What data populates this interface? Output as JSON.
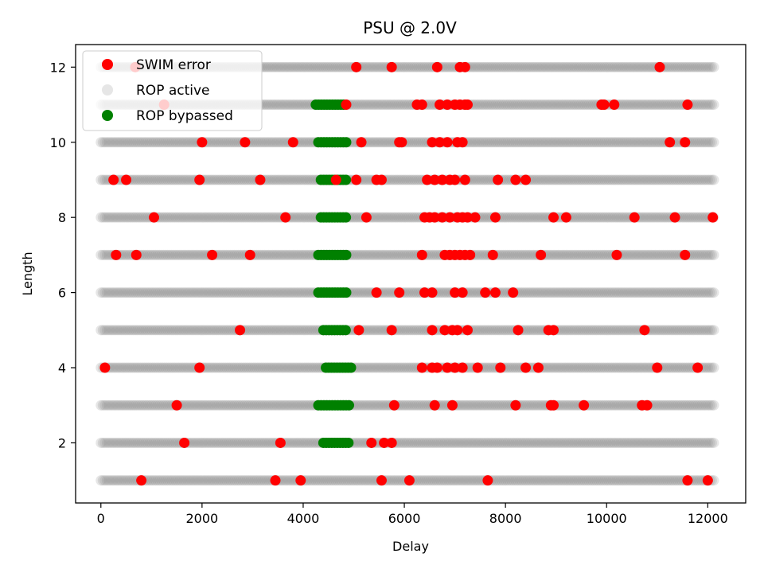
{
  "chart_data": {
    "type": "scatter",
    "title": "PSU @ 2.0V",
    "xlabel": "Delay",
    "ylabel": "Length",
    "xlim": [
      -500,
      12750
    ],
    "ylim": [
      0.4,
      12.6
    ],
    "xticks": [
      0,
      2000,
      4000,
      6000,
      8000,
      10000,
      12000
    ],
    "yticks": [
      2,
      4,
      6,
      8,
      10,
      12
    ],
    "grid": false,
    "legend_position": "top-left",
    "series": [
      {
        "name": "SWIM error",
        "color": "#ff0000",
        "points": [
          [
            680,
            12
          ],
          [
            5050,
            12
          ],
          [
            5750,
            12
          ],
          [
            6650,
            12
          ],
          [
            7100,
            12
          ],
          [
            7200,
            12
          ],
          [
            11050,
            12
          ],
          [
            1250,
            11
          ],
          [
            4850,
            11
          ],
          [
            6250,
            11
          ],
          [
            6350,
            11
          ],
          [
            6700,
            11
          ],
          [
            6850,
            11
          ],
          [
            7000,
            11
          ],
          [
            7100,
            11
          ],
          [
            7200,
            11
          ],
          [
            7250,
            11
          ],
          [
            9900,
            11
          ],
          [
            9950,
            11
          ],
          [
            10150,
            11
          ],
          [
            11600,
            11
          ],
          [
            2000,
            10
          ],
          [
            2850,
            10
          ],
          [
            3800,
            10
          ],
          [
            5150,
            10
          ],
          [
            5900,
            10
          ],
          [
            5950,
            10
          ],
          [
            6550,
            10
          ],
          [
            6700,
            10
          ],
          [
            6850,
            10
          ],
          [
            7050,
            10
          ],
          [
            7150,
            10
          ],
          [
            11250,
            10
          ],
          [
            11550,
            10
          ],
          [
            250,
            9
          ],
          [
            500,
            9
          ],
          [
            1950,
            9
          ],
          [
            3150,
            9
          ],
          [
            4650,
            9
          ],
          [
            5050,
            9
          ],
          [
            5450,
            9
          ],
          [
            5550,
            9
          ],
          [
            6450,
            9
          ],
          [
            6600,
            9
          ],
          [
            6750,
            9
          ],
          [
            6900,
            9
          ],
          [
            7000,
            9
          ],
          [
            7200,
            9
          ],
          [
            7850,
            9
          ],
          [
            8200,
            9
          ],
          [
            8400,
            9
          ],
          [
            1050,
            8
          ],
          [
            3650,
            8
          ],
          [
            5250,
            8
          ],
          [
            6400,
            8
          ],
          [
            6500,
            8
          ],
          [
            6600,
            8
          ],
          [
            6750,
            8
          ],
          [
            6900,
            8
          ],
          [
            7050,
            8
          ],
          [
            7150,
            8
          ],
          [
            7250,
            8
          ],
          [
            7400,
            8
          ],
          [
            7800,
            8
          ],
          [
            8950,
            8
          ],
          [
            9200,
            8
          ],
          [
            10550,
            8
          ],
          [
            11350,
            8
          ],
          [
            12100,
            8
          ],
          [
            300,
            7
          ],
          [
            700,
            7
          ],
          [
            2200,
            7
          ],
          [
            2950,
            7
          ],
          [
            6350,
            7
          ],
          [
            6800,
            7
          ],
          [
            6900,
            7
          ],
          [
            7000,
            7
          ],
          [
            7100,
            7
          ],
          [
            7200,
            7
          ],
          [
            7300,
            7
          ],
          [
            7750,
            7
          ],
          [
            8700,
            7
          ],
          [
            10200,
            7
          ],
          [
            11550,
            7
          ],
          [
            5450,
            6
          ],
          [
            5900,
            6
          ],
          [
            6400,
            6
          ],
          [
            6550,
            6
          ],
          [
            7000,
            6
          ],
          [
            7150,
            6
          ],
          [
            7600,
            6
          ],
          [
            7800,
            6
          ],
          [
            8150,
            6
          ],
          [
            2750,
            5
          ],
          [
            5100,
            5
          ],
          [
            5750,
            5
          ],
          [
            6550,
            5
          ],
          [
            6800,
            5
          ],
          [
            6950,
            5
          ],
          [
            7050,
            5
          ],
          [
            7250,
            5
          ],
          [
            8250,
            5
          ],
          [
            8850,
            5
          ],
          [
            8950,
            5
          ],
          [
            10750,
            5
          ],
          [
            80,
            4
          ],
          [
            1950,
            4
          ],
          [
            6350,
            4
          ],
          [
            6550,
            4
          ],
          [
            6650,
            4
          ],
          [
            6850,
            4
          ],
          [
            7000,
            4
          ],
          [
            7150,
            4
          ],
          [
            7450,
            4
          ],
          [
            7900,
            4
          ],
          [
            8400,
            4
          ],
          [
            8650,
            4
          ],
          [
            11000,
            4
          ],
          [
            11800,
            4
          ],
          [
            1500,
            3
          ],
          [
            5800,
            3
          ],
          [
            6600,
            3
          ],
          [
            6950,
            3
          ],
          [
            8200,
            3
          ],
          [
            8900,
            3
          ],
          [
            8950,
            3
          ],
          [
            9550,
            3
          ],
          [
            10700,
            3
          ],
          [
            10800,
            3
          ],
          [
            1650,
            2
          ],
          [
            3550,
            2
          ],
          [
            5350,
            2
          ],
          [
            5600,
            2
          ],
          [
            5750,
            2
          ],
          [
            800,
            1
          ],
          [
            3450,
            1
          ],
          [
            3950,
            1
          ],
          [
            5550,
            1
          ],
          [
            6100,
            1
          ],
          [
            7650,
            1
          ],
          [
            11600,
            1
          ],
          [
            12000,
            1
          ]
        ]
      },
      {
        "name": "ROP active",
        "color": "#808080",
        "x_min": 0,
        "x_max": 12150,
        "y_values": [
          1,
          2,
          3,
          4,
          5,
          6,
          7,
          8,
          9,
          10,
          11,
          12
        ]
      },
      {
        "name": "ROP bypassed",
        "color": "#008000",
        "ranges": [
          {
            "y": 11,
            "x_from": 4250,
            "x_to": 4800
          },
          {
            "y": 10,
            "x_from": 4300,
            "x_to": 4850
          },
          {
            "y": 9,
            "x_from": 4350,
            "x_to": 4850
          },
          {
            "y": 8,
            "x_from": 4350,
            "x_to": 4850
          },
          {
            "y": 7,
            "x_from": 4300,
            "x_to": 4900
          },
          {
            "y": 6,
            "x_from": 4300,
            "x_to": 4850
          },
          {
            "y": 5,
            "x_from": 4400,
            "x_to": 4850
          },
          {
            "y": 4,
            "x_from": 4450,
            "x_to": 4950
          },
          {
            "y": 3,
            "x_from": 4300,
            "x_to": 4950
          },
          {
            "y": 2,
            "x_from": 4400,
            "x_to": 4900
          }
        ]
      }
    ]
  }
}
